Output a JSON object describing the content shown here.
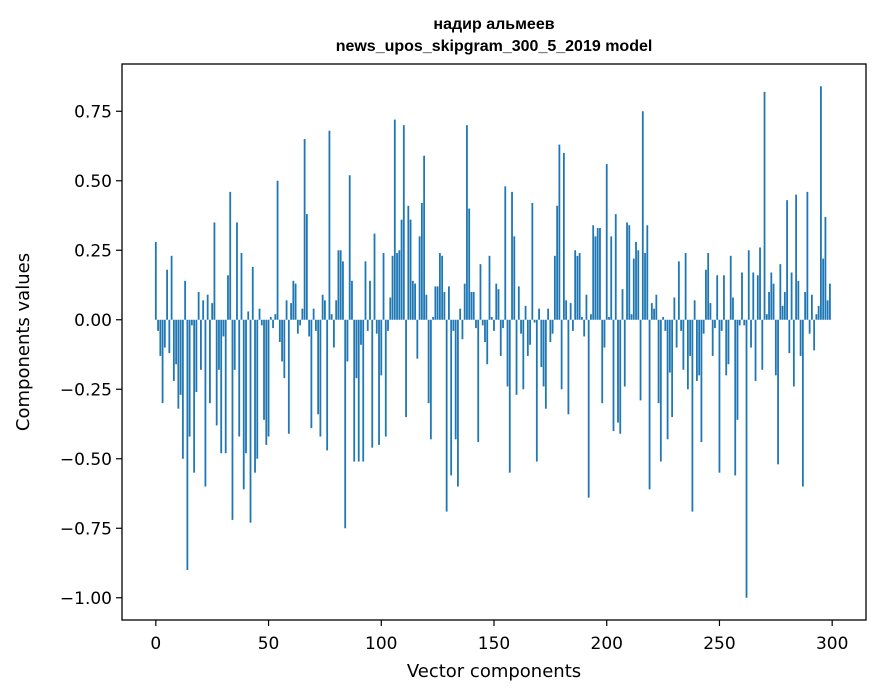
{
  "chart_data": {
    "type": "bar",
    "title_line1": "надир альмеев",
    "title_line2": "news_upos_skipgram_300_5_2019 model",
    "xlabel": "Vector components",
    "ylabel": "Components values",
    "xlim": [
      -15,
      315
    ],
    "ylim": [
      -1.08,
      0.92
    ],
    "xticks": [
      0,
      50,
      100,
      150,
      200,
      250,
      300
    ],
    "yticks": [
      0.75,
      0.5,
      0.25,
      0.0,
      -0.25,
      -0.5,
      -0.75,
      -1.0
    ],
    "xtick_labels": [
      "0",
      "50",
      "100",
      "150",
      "200",
      "250",
      "300"
    ],
    "ytick_labels": [
      "0.75",
      "0.50",
      "0.25",
      "0.00",
      "−0.25",
      "−0.50",
      "−0.75",
      "−1.00"
    ],
    "bar_color": "#1f77b4",
    "values": [
      0.28,
      -0.04,
      -0.13,
      -0.3,
      -0.1,
      0.18,
      -0.12,
      0.23,
      -0.22,
      -0.16,
      -0.32,
      -0.27,
      -0.5,
      0.14,
      -0.9,
      -0.42,
      -0.02,
      -0.55,
      -0.26,
      0.1,
      -0.18,
      0.07,
      -0.6,
      0.09,
      -0.3,
      0.06,
      0.35,
      -0.38,
      -0.18,
      -0.48,
      -0.06,
      -0.48,
      0.16,
      0.46,
      -0.72,
      -0.18,
      0.35,
      -0.42,
      0.24,
      -0.61,
      -0.48,
      0.03,
      -0.73,
      0.19,
      -0.55,
      -0.5,
      0.04,
      -0.02,
      -0.36,
      -0.45,
      -0.42,
      0.01,
      -0.03,
      0.02,
      0.5,
      -0.08,
      -0.15,
      -0.21,
      0.07,
      -0.41,
      0.06,
      0.14,
      0.13,
      -0.05,
      -0.02,
      0.04,
      0.65,
      0.38,
      -0.06,
      -0.39,
      0.04,
      -0.04,
      -0.34,
      -0.42,
      0.09,
      0.07,
      -0.47,
      0.68,
      0.02,
      -0.1,
      0.07,
      0.25,
      0.25,
      0.21,
      -0.75,
      -0.15,
      0.52,
      0.14,
      -0.51,
      -0.21,
      -0.51,
      -0.09,
      -0.51,
      0.21,
      -0.04,
      0.14,
      -0.46,
      0.31,
      -0.05,
      -0.45,
      -0.2,
      0.24,
      -0.42,
      -0.04,
      0.08,
      0.23,
      0.72,
      0.24,
      0.25,
      0.36,
      0.7,
      -0.35,
      0.41,
      0.36,
      0.14,
      0.13,
      -0.14,
      0.3,
      0.42,
      0.59,
      0.09,
      -0.3,
      -0.43,
      0.01,
      0.12,
      0.12,
      0.24,
      0.23,
      0.1,
      -0.69,
      0.12,
      -0.56,
      -0.04,
      -0.43,
      -0.6,
      0.04,
      -0.07,
      0.13,
      0.7,
      0.4,
      0.1,
      0.1,
      -0.03,
      -0.44,
      0.2,
      -0.02,
      -0.08,
      -0.16,
      0.23,
      0.01,
      -0.04,
      0.13,
      0.11,
      -0.13,
      -0.03,
      0.48,
      -0.24,
      -0.55,
      0.46,
      0.3,
      -0.27,
      0.12,
      -0.05,
      -0.25,
      0.05,
      -0.13,
      -0.09,
      0.42,
      -0.01,
      -0.51,
      0.04,
      -0.17,
      -0.24,
      -0.32,
      0.04,
      -0.08,
      -0.05,
      0.23,
      0.41,
      0.63,
      -0.25,
      0.6,
      0.07,
      -0.34,
      0.06,
      -0.04,
      0.25,
      0.23,
      0.24,
      0.01,
      -0.06,
      0.09,
      -0.64,
      0.02,
      0.34,
      0.3,
      0.33,
      0.33,
      -0.3,
      -0.1,
      0.56,
      0.01,
      0.3,
      -0.4,
      0.38,
      -0.37,
      -0.41,
      0.11,
      -0.24,
      0.35,
      0.34,
      0.02,
      0.22,
      0.28,
      0.25,
      -0.29,
      0.75,
      0.24,
      0.34,
      -0.61,
      0.06,
      0.04,
      0.09,
      -0.3,
      -0.51,
      0.01,
      -0.04,
      -0.43,
      -0.19,
      -0.35,
      0.08,
      -0.1,
      0.21,
      -0.04,
      -0.18,
      0.24,
      -0.25,
      -0.13,
      -0.69,
      0.07,
      -0.22,
      -0.2,
      -0.44,
      -0.05,
      0.18,
      0.24,
      0.06,
      -0.13,
      -0.03,
      0.16,
      -0.55,
      -0.04,
      0.16,
      -0.2,
      -0.16,
      0.23,
      0.08,
      -0.56,
      -0.36,
      -0.02,
      0.17,
      -0.02,
      -1.0,
      0.25,
      -0.1,
      0.17,
      -0.22,
      0.16,
      0.26,
      -0.18,
      0.82,
      0.02,
      0.1,
      0.17,
      0.13,
      -0.2,
      -0.52,
      0.2,
      0.05,
      0.1,
      0.43,
      -0.12,
      0.17,
      -0.24,
      0.45,
      0.14,
      -0.13,
      -0.6,
      0.1,
      0.46,
      -0.05,
      0.09,
      -0.11,
      0.02,
      0.05,
      0.84,
      0.22,
      0.37,
      0.07,
      0.13
    ]
  }
}
